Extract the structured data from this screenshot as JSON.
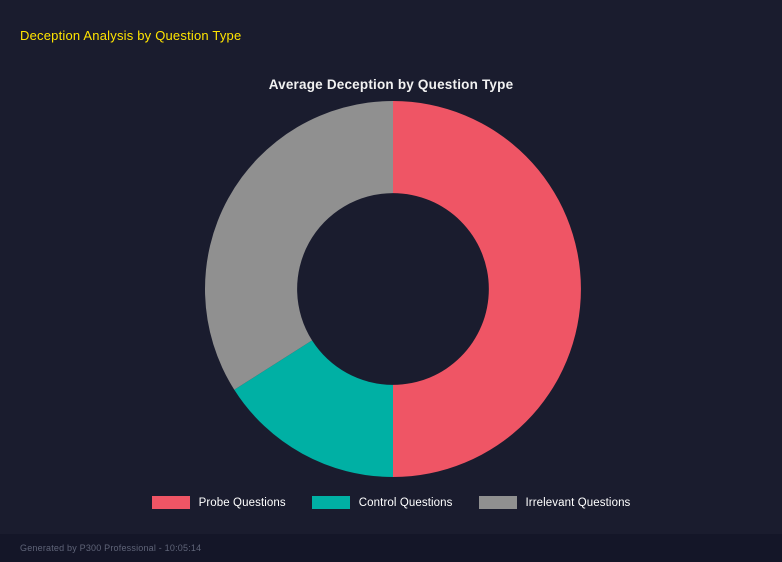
{
  "page": {
    "header": "Deception Analysis by Question Type",
    "footer": "Generated by P300 Professional - 10:05:14"
  },
  "chart_data": {
    "type": "pie",
    "subtype": "donut",
    "title": "Average Deception by Question Type",
    "legend_position": "bottom",
    "inner_radius_ratio": 0.51,
    "start_angle_deg": 0,
    "direction": "clockwise",
    "segments": [
      {
        "label": "Probe Questions",
        "value": 50,
        "color": "#ef5565"
      },
      {
        "label": "Control Questions",
        "value": 16,
        "color": "#00b0a4"
      },
      {
        "label": "Irrelevant Questions",
        "value": 34,
        "color": "#909090"
      }
    ]
  },
  "colors": {
    "background": "#1a1c2e",
    "footer_background": "#141628",
    "header_text": "#ffe400",
    "title_text": "#f2f2f2",
    "legend_text": "#ffffff",
    "footer_text": "#5f6478"
  }
}
